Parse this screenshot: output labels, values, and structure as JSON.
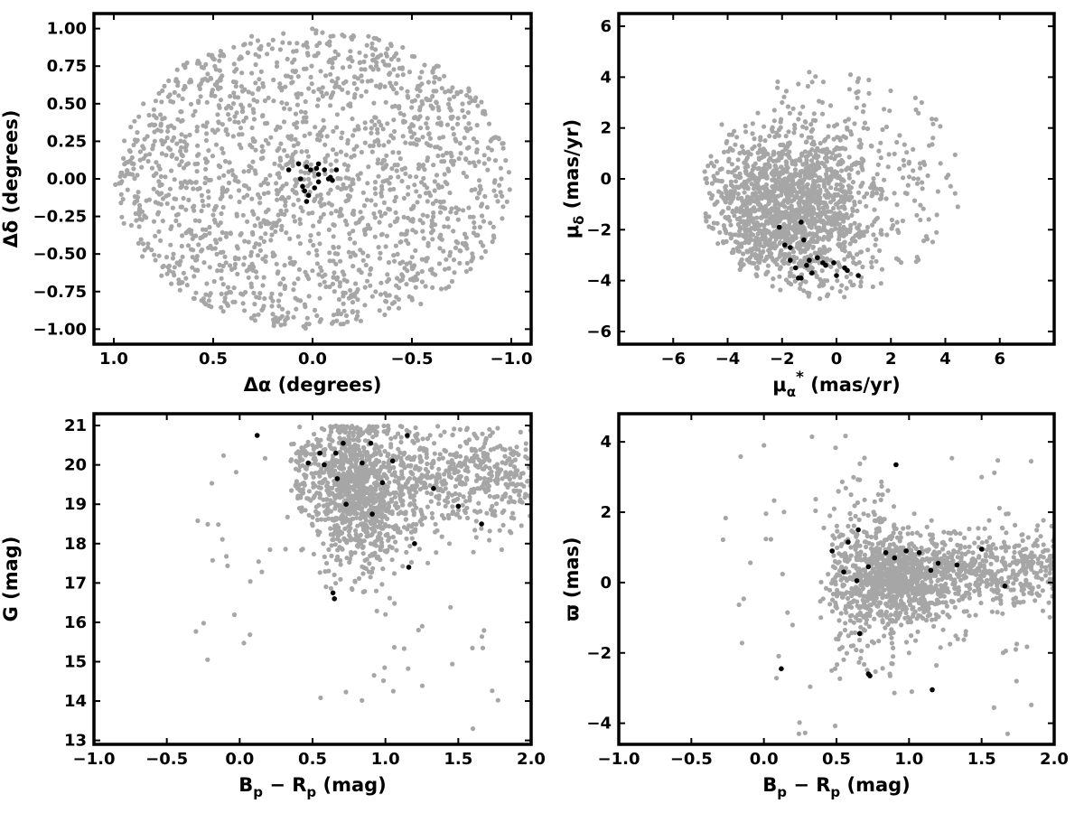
{
  "colors": {
    "field_stars": "#a6a6a6",
    "members": "#000000",
    "frame": "#000000"
  },
  "chart_data": [
    {
      "type": "scatter",
      "panel": "top-left",
      "xlabel": "Δα (degrees)",
      "ylabel": "Δδ (degrees)",
      "xlim": [
        1.1,
        -1.1
      ],
      "ylim": [
        -1.1,
        1.1
      ],
      "x_inverted": true,
      "xticks": [
        1.0,
        0.5,
        0.0,
        -0.5,
        -1.0
      ],
      "xtick_labels": [
        "1.0",
        "0.5",
        "0.0",
        "−0.5",
        "−1.0"
      ],
      "yticks": [
        -1.0,
        -0.75,
        -0.5,
        -0.25,
        0.0,
        0.25,
        0.5,
        0.75,
        1.0
      ],
      "ytick_labels": [
        "−1.00",
        "−0.75",
        "−0.50",
        "−0.25",
        "0.00",
        "0.25",
        "0.50",
        "0.75",
        "1.00"
      ],
      "field_distribution": {
        "shape": "disk",
        "center": [
          0.0,
          0.0
        ],
        "radius": 1.0,
        "count": 1800
      },
      "series": [
        {
          "role": "field",
          "color": "#a6a6a6",
          "sample_points": [
            [
              0.5,
              0.8
            ],
            [
              -0.3,
              0.9
            ],
            [
              0.9,
              0.1
            ],
            [
              -0.95,
              0.0
            ],
            [
              0.2,
              -0.9
            ],
            [
              -0.6,
              -0.6
            ],
            [
              0.7,
              -0.5
            ],
            [
              -0.2,
              0.4
            ]
          ]
        },
        {
          "role": "members",
          "color": "#000000",
          "points": [
            [
              0.12,
              0.06
            ],
            [
              0.07,
              0.1
            ],
            [
              0.06,
              0.0
            ],
            [
              0.03,
              0.08
            ],
            [
              0.01,
              0.06
            ],
            [
              -0.02,
              0.07
            ],
            [
              -0.03,
              0.03
            ],
            [
              -0.03,
              0.1
            ],
            [
              0.05,
              -0.05
            ],
            [
              0.04,
              -0.08
            ],
            [
              0.02,
              -0.11
            ],
            [
              0.03,
              -0.15
            ],
            [
              -0.01,
              -0.06
            ],
            [
              -0.03,
              -0.02
            ],
            [
              -0.06,
              0.06
            ],
            [
              -0.08,
              0.0
            ],
            [
              -0.09,
              0.01
            ],
            [
              -0.1,
              -0.01
            ],
            [
              -0.12,
              0.06
            ]
          ]
        }
      ]
    },
    {
      "type": "scatter",
      "panel": "top-right",
      "xlabel": "μα* (mas/yr)",
      "ylabel": "μδ (mas/yr)",
      "xlim": [
        -8,
        8
      ],
      "ylim": [
        -6.5,
        6.5
      ],
      "xticks": [
        -6,
        -4,
        -2,
        0,
        2,
        4,
        6
      ],
      "xtick_labels": [
        "−6",
        "−4",
        "−2",
        "0",
        "2",
        "4",
        "6"
      ],
      "yticks": [
        -6,
        -4,
        -2,
        0,
        2,
        4,
        6
      ],
      "ytick_labels": [
        "−6",
        "−4",
        "−2",
        "0",
        "2",
        "4",
        "6"
      ],
      "field_distribution": {
        "shape": "cloud",
        "center": [
          -1.8,
          -1.3
        ],
        "extent_x": [
          -5,
          5
        ],
        "extent_y": [
          -5,
          4.3
        ],
        "count": 1700
      },
      "series": [
        {
          "role": "field",
          "color": "#a6a6a6",
          "sample_points": [
            [
              -4.5,
              0.5
            ],
            [
              -3,
              -3
            ],
            [
              -1,
              -4.5
            ],
            [
              0.5,
              -3
            ],
            [
              1,
              2
            ],
            [
              3,
              0
            ],
            [
              -2,
              3
            ],
            [
              -1,
              4.2
            ]
          ]
        },
        {
          "role": "members",
          "color": "#000000",
          "points": [
            [
              -2.1,
              -1.9
            ],
            [
              -1.9,
              -2.6
            ],
            [
              -1.7,
              -2.7
            ],
            [
              -1.7,
              -3.2
            ],
            [
              -1.5,
              -3.5
            ],
            [
              -1.3,
              -3.9
            ],
            [
              -1.4,
              -3.9
            ],
            [
              -1.3,
              -1.7
            ],
            [
              -1.2,
              -2.4
            ],
            [
              -1.1,
              -3.4
            ],
            [
              -1.0,
              -3.2
            ],
            [
              -0.9,
              -3.7
            ],
            [
              -0.7,
              -3.1
            ],
            [
              -0.5,
              -3.3
            ],
            [
              -0.4,
              -3.4
            ],
            [
              -0.1,
              -3.3
            ],
            [
              0.0,
              -3.8
            ],
            [
              0.3,
              -3.5
            ],
            [
              0.4,
              -3.6
            ],
            [
              0.8,
              -3.8
            ]
          ]
        }
      ]
    },
    {
      "type": "scatter",
      "panel": "bottom-left",
      "xlabel": "Bp − Rp (mag)",
      "ylabel": "G (mag)",
      "xlim": [
        -1.0,
        2.0
      ],
      "ylim": [
        12.9,
        21.3
      ],
      "y_inverted": false,
      "xticks": [
        -1.0,
        -0.5,
        0.0,
        0.5,
        1.0,
        1.5,
        2.0
      ],
      "xtick_labels": [
        "−1.0",
        "−0.5",
        "0.0",
        "0.5",
        "1.0",
        "1.5",
        "2.0"
      ],
      "yticks": [
        13,
        14,
        15,
        16,
        17,
        18,
        19,
        20,
        21
      ],
      "ytick_labels": [
        "13",
        "14",
        "15",
        "16",
        "17",
        "18",
        "19",
        "20",
        "21"
      ],
      "field_distribution": {
        "shape": "cmd",
        "count": 1600
      },
      "series": [
        {
          "role": "field",
          "color": "#a6a6a6",
          "sample_points": [
            [
              0.8,
              19.5
            ],
            [
              0.9,
              18.0
            ],
            [
              1.2,
              20.2
            ],
            [
              1.6,
              19.3
            ],
            [
              1.9,
              20.3
            ],
            [
              0.5,
              20.5
            ],
            [
              1.0,
              16.2
            ],
            [
              1.6,
              13.3
            ]
          ]
        },
        {
          "role": "members",
          "color": "#000000",
          "points": [
            [
              0.12,
              20.75
            ],
            [
              0.47,
              20.05
            ],
            [
              0.55,
              20.3
            ],
            [
              0.58,
              20.0
            ],
            [
              0.64,
              16.75
            ],
            [
              0.65,
              16.6
            ],
            [
              0.66,
              20.3
            ],
            [
              0.67,
              19.65
            ],
            [
              0.71,
              20.55
            ],
            [
              0.73,
              19.0
            ],
            [
              0.84,
              20.05
            ],
            [
              0.9,
              20.55
            ],
            [
              0.91,
              18.75
            ],
            [
              0.98,
              19.55
            ],
            [
              1.05,
              20.1
            ],
            [
              1.15,
              20.75
            ],
            [
              1.16,
              17.4
            ],
            [
              1.2,
              18.0
            ],
            [
              1.33,
              19.4
            ],
            [
              1.5,
              18.95
            ],
            [
              1.66,
              18.5
            ]
          ]
        }
      ]
    },
    {
      "type": "scatter",
      "panel": "bottom-right",
      "xlabel": "Bp − Rp (mag)",
      "ylabel": "ϖ (mas)",
      "xlim": [
        -1.0,
        2.0
      ],
      "ylim": [
        -4.6,
        4.8
      ],
      "xticks": [
        -1.0,
        -0.5,
        0.0,
        0.5,
        1.0,
        1.5,
        2.0
      ],
      "xtick_labels": [
        "−1.0",
        "−0.5",
        "0.0",
        "0.5",
        "1.0",
        "1.5",
        "2.0"
      ],
      "yticks": [
        -4,
        -2,
        0,
        2,
        4
      ],
      "ytick_labels": [
        "−4",
        "−2",
        "0",
        "2",
        "4"
      ],
      "field_distribution": {
        "shape": "band",
        "center_y": 0.2,
        "count": 1600
      },
      "series": [
        {
          "role": "field",
          "color": "#a6a6a6",
          "sample_points": [
            [
              0.9,
              0.2
            ],
            [
              0.7,
              -1.0
            ],
            [
              1.3,
              0.5
            ],
            [
              1.8,
              0.7
            ],
            [
              0.6,
              2.5
            ],
            [
              1.0,
              -2.0
            ],
            [
              1.5,
              3.0
            ],
            [
              0.0,
              3.9
            ]
          ]
        },
        {
          "role": "members",
          "color": "#000000",
          "points": [
            [
              0.12,
              -2.45
            ],
            [
              0.47,
              0.9
            ],
            [
              0.55,
              0.3
            ],
            [
              0.58,
              1.15
            ],
            [
              0.64,
              0.05
            ],
            [
              0.65,
              1.5
            ],
            [
              0.66,
              -1.45
            ],
            [
              0.72,
              0.45
            ],
            [
              0.72,
              -2.6
            ],
            [
              0.73,
              -2.65
            ],
            [
              0.84,
              0.85
            ],
            [
              0.9,
              0.7
            ],
            [
              0.91,
              3.35
            ],
            [
              0.98,
              0.9
            ],
            [
              1.07,
              0.85
            ],
            [
              1.15,
              0.35
            ],
            [
              1.16,
              -3.05
            ],
            [
              1.2,
              0.55
            ],
            [
              1.33,
              0.5
            ],
            [
              1.5,
              0.95
            ],
            [
              1.66,
              -0.1
            ]
          ]
        }
      ]
    }
  ]
}
